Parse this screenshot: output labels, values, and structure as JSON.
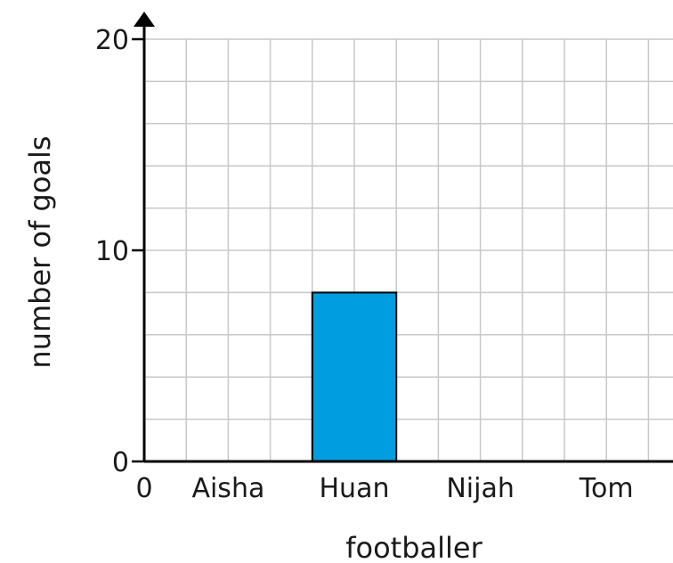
{
  "chart_data": {
    "type": "bar",
    "categories": [
      "Aisha",
      "Huan",
      "Nijah",
      "Tom"
    ],
    "values": [
      null,
      8,
      null,
      null
    ],
    "xlabel": "footballer",
    "ylabel": "number of goals",
    "ylim": [
      0,
      20
    ],
    "y_ticks": [
      "0",
      "10",
      "20"
    ],
    "x_origin_label": "0",
    "grid": true,
    "bar_color": "#009ee0",
    "grid_color": "#c8c8c8",
    "axis_color": "#000000"
  }
}
